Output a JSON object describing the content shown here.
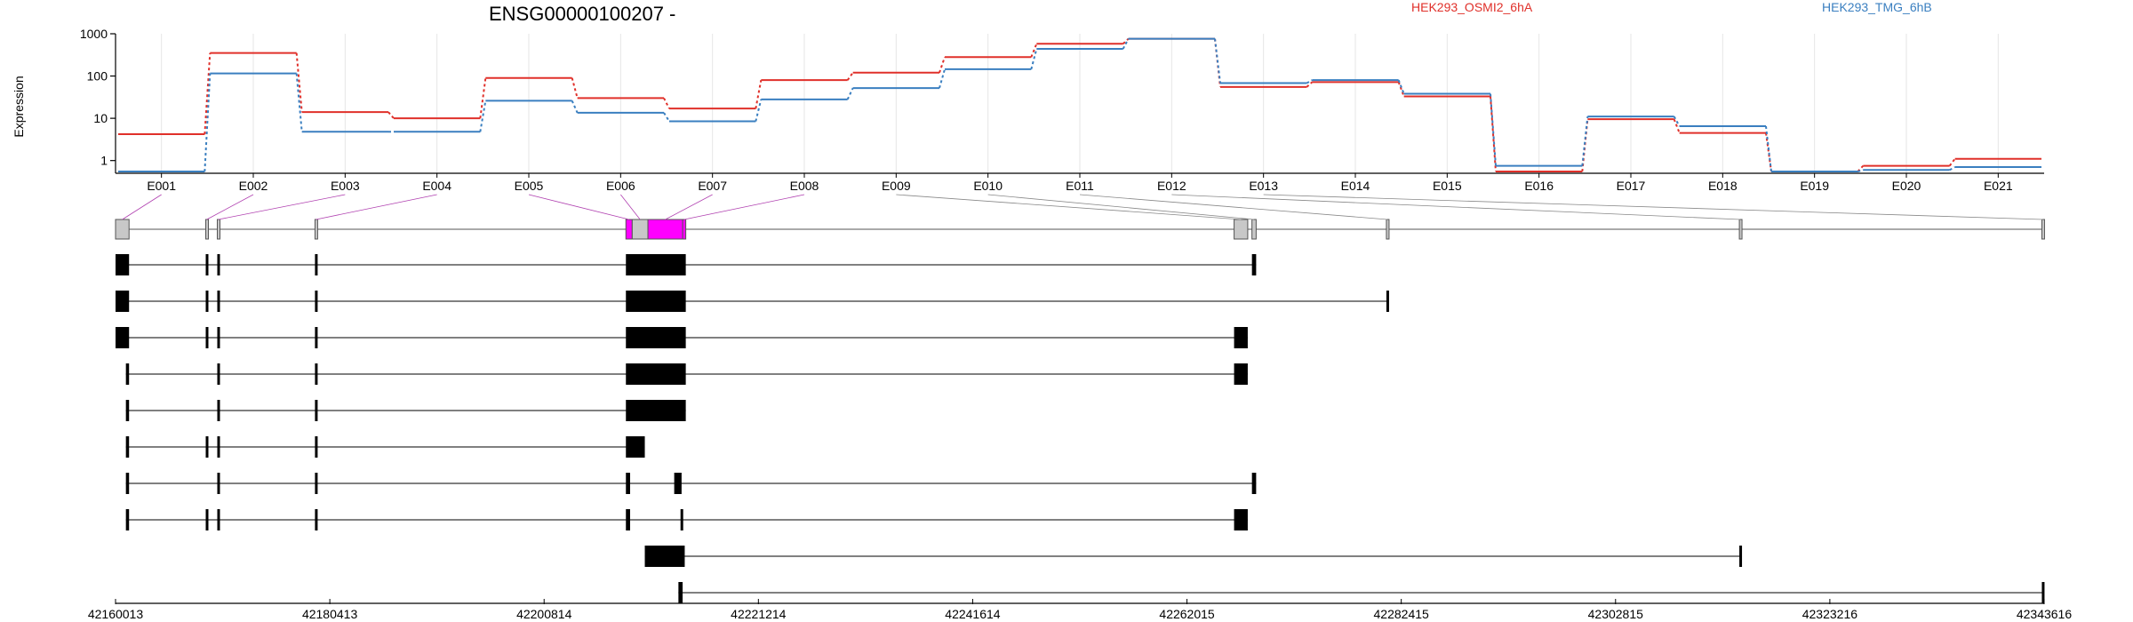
{
  "chart_data": {
    "type": "line",
    "title": "ENSG00000100207 -",
    "ylabel": "Expression",
    "y_scale": "log",
    "ylim": [
      0.5,
      1000
    ],
    "y_ticks": [
      {
        "v": 1000,
        "label": "1000"
      },
      {
        "v": 100,
        "label": "100"
      },
      {
        "v": 10,
        "label": "10"
      },
      {
        "v": 1,
        "label": "1"
      }
    ],
    "exons": [
      "E001",
      "E002",
      "E003",
      "E004",
      "E005",
      "E006",
      "E007",
      "E008",
      "E009",
      "E010",
      "E011",
      "E012",
      "E013",
      "E014",
      "E015",
      "E016",
      "E017",
      "E018",
      "E019",
      "E020",
      "E021"
    ],
    "series": [
      {
        "name": "HEK293_OSMI2_6hA",
        "color": "#e0302a",
        "values": [
          4.2,
          350,
          14,
          10,
          90,
          30,
          17,
          80,
          120,
          280,
          580,
          760,
          55,
          72,
          33,
          0.55,
          9.5,
          4.5,
          0.55,
          0.75,
          1.1
        ]
      },
      {
        "name": "HEK293_TMG_6hB",
        "color": "#3a7fc0",
        "values": [
          0.55,
          115,
          4.8,
          4.8,
          26,
          13.5,
          8.5,
          28,
          52,
          145,
          440,
          760,
          68,
          80,
          38,
          0.75,
          11,
          6.5,
          0.55,
          0.6,
          0.7
        ]
      }
    ],
    "genomic_ticks": [
      "42160013",
      "42180413",
      "42200814",
      "42221214",
      "42241614",
      "42262015",
      "42282415",
      "42302815",
      "42323216",
      "42343616"
    ],
    "genome_range": [
      42160013,
      42343616
    ],
    "exon_blocks": [
      {
        "s": 42160013,
        "e": 42161300,
        "fill": "#c8c8c8"
      },
      {
        "s": 42168600,
        "e": 42168800,
        "fill": "#c8c8c8"
      },
      {
        "s": 42169700,
        "e": 42169900,
        "fill": "#c8c8c8"
      },
      {
        "s": 42179000,
        "e": 42179200,
        "fill": "#c8c8c8"
      },
      {
        "s": 42208600,
        "e": 42209200,
        "fill": "#ff00ff"
      },
      {
        "s": 42209200,
        "e": 42210700,
        "fill": "#c8c8c8"
      },
      {
        "s": 42210700,
        "e": 42214000,
        "fill": "#ff00ff"
      },
      {
        "s": 42214000,
        "e": 42214300,
        "fill": "#ff00ff"
      },
      {
        "s": 42266500,
        "e": 42267800,
        "fill": "#c8c8c8"
      },
      {
        "s": 42268200,
        "e": 42268600,
        "fill": "#c8c8c8"
      },
      {
        "s": 42281000,
        "e": 42281200,
        "fill": "#c8c8c8"
      },
      {
        "s": 42314600,
        "e": 42314800,
        "fill": "#c8c8c8"
      },
      {
        "s": 42343400,
        "e": 42343616,
        "fill": "#c8c8c8"
      }
    ],
    "transcripts": [
      [
        [
          42160013,
          42161300
        ],
        [
          42168600,
          42168800
        ],
        [
          42169700,
          42169900
        ],
        [
          42179000,
          42179200
        ],
        [
          42208600,
          42214300
        ],
        [
          42268200,
          42268600
        ]
      ],
      [
        [
          42160013,
          42161300
        ],
        [
          42168600,
          42168800
        ],
        [
          42169700,
          42169900
        ],
        [
          42179000,
          42179200
        ],
        [
          42208600,
          42214300
        ],
        [
          42281000,
          42281200
        ]
      ],
      [
        [
          42160013,
          42161300
        ],
        [
          42168600,
          42168800
        ],
        [
          42169700,
          42169900
        ],
        [
          42179000,
          42179200
        ],
        [
          42208600,
          42214300
        ],
        [
          42266500,
          42267800
        ]
      ],
      [
        [
          42161000,
          42161300
        ],
        [
          42169700,
          42169900
        ],
        [
          42179000,
          42179200
        ],
        [
          42208600,
          42214300
        ],
        [
          42266500,
          42267800
        ]
      ],
      [
        [
          42161000,
          42161300
        ],
        [
          42169700,
          42169900
        ],
        [
          42179000,
          42179200
        ],
        [
          42208600,
          42214300
        ]
      ],
      [
        [
          42161000,
          42161300
        ],
        [
          42168600,
          42168800
        ],
        [
          42169700,
          42169900
        ],
        [
          42179000,
          42179200
        ],
        [
          42208600,
          42210400
        ]
      ],
      [
        [
          42161000,
          42161300
        ],
        [
          42169700,
          42169900
        ],
        [
          42179000,
          42179200
        ],
        [
          42208600,
          42209000
        ],
        [
          42213200,
          42213900
        ],
        [
          42268200,
          42268600
        ]
      ],
      [
        [
          42161000,
          42161300
        ],
        [
          42168600,
          42168800
        ],
        [
          42169700,
          42169900
        ],
        [
          42179000,
          42179200
        ],
        [
          42208600,
          42209000
        ],
        [
          42213800,
          42214000
        ],
        [
          42266500,
          42267800
        ]
      ],
      [
        [
          42210400,
          42214200
        ],
        [
          42314600,
          42314800
        ]
      ],
      [
        [
          42213600,
          42214000
        ],
        [
          42343400,
          42343616
        ]
      ]
    ]
  }
}
